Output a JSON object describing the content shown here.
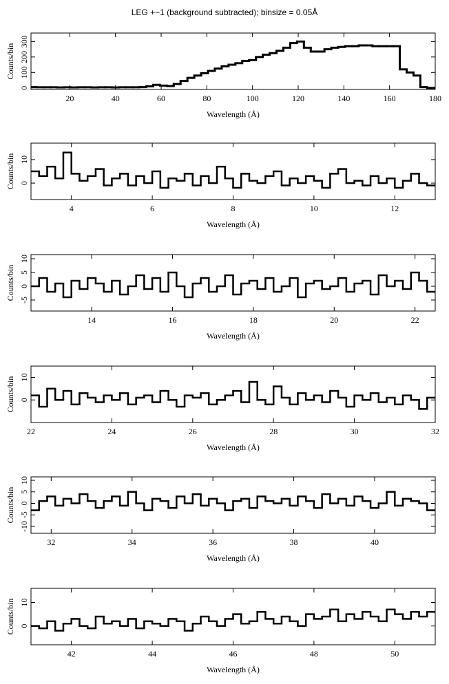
{
  "chart_data": [
    {
      "type": "step",
      "title": "LEG +−1 (background subtracted); binsize = 0.05Å",
      "xlabel": "Wavelength (Å)",
      "ylabel": "Counts/bin",
      "xlim": [
        3,
        180
      ],
      "ylim": [
        -10,
        355
      ],
      "xticks": [
        20,
        40,
        60,
        80,
        100,
        120,
        140,
        160,
        180
      ],
      "yticks": [
        0,
        100,
        200,
        300
      ],
      "color": "#000000",
      "x": [
        4,
        7,
        10,
        13,
        16,
        19,
        22,
        25,
        28,
        31,
        34,
        37,
        40,
        43,
        46,
        49,
        52,
        55,
        58,
        61,
        64,
        67,
        70,
        73,
        76,
        79,
        82,
        85,
        88,
        91,
        94,
        97,
        100,
        103,
        106,
        109,
        112,
        115,
        118,
        121,
        124,
        127,
        130,
        133,
        136,
        139,
        142,
        145,
        148,
        151,
        154,
        157,
        160,
        163,
        166,
        169,
        172,
        175,
        178
      ],
      "values": [
        5,
        4,
        4,
        4,
        3,
        4,
        3,
        4,
        4,
        3,
        4,
        4,
        3,
        4,
        4,
        4,
        5,
        10,
        20,
        15,
        12,
        25,
        45,
        65,
        80,
        95,
        110,
        125,
        140,
        150,
        160,
        175,
        180,
        200,
        215,
        225,
        240,
        260,
        290,
        300,
        260,
        235,
        235,
        250,
        260,
        265,
        270,
        270,
        275,
        275,
        270,
        270,
        270,
        270,
        120,
        100,
        80,
        5,
        0
      ]
    },
    {
      "type": "step",
      "xlabel": "Wavelength (Å)",
      "ylabel": "Counts/bin",
      "xlim": [
        3,
        13
      ],
      "ylim": [
        -7,
        17
      ],
      "xticks": [
        4,
        6,
        8,
        10,
        12
      ],
      "yticks": [
        0,
        10
      ],
      "color": "#000000",
      "x": [
        3.1,
        3.3,
        3.5,
        3.7,
        3.9,
        4.1,
        4.3,
        4.5,
        4.7,
        4.9,
        5.1,
        5.3,
        5.5,
        5.7,
        5.9,
        6.1,
        6.3,
        6.5,
        6.7,
        6.9,
        7.1,
        7.3,
        7.5,
        7.7,
        7.9,
        8.1,
        8.3,
        8.5,
        8.7,
        8.9,
        9.1,
        9.3,
        9.5,
        9.7,
        9.9,
        10.1,
        10.3,
        10.5,
        10.7,
        10.9,
        11.1,
        11.3,
        11.5,
        11.7,
        11.9,
        12.1,
        12.3,
        12.5,
        12.7,
        12.9
      ],
      "values": [
        5,
        3,
        7,
        2,
        13,
        4,
        1,
        3,
        6,
        -1,
        2,
        4,
        -1,
        3,
        0,
        5,
        -2,
        2,
        1,
        4,
        -1,
        3,
        0,
        7,
        2,
        -2,
        4,
        1,
        0,
        3,
        5,
        -1,
        2,
        0,
        3,
        1,
        -2,
        4,
        6,
        0,
        1,
        -1,
        3,
        0,
        2,
        -2,
        1,
        4,
        0,
        -1
      ]
    },
    {
      "type": "step",
      "xlabel": "Wavelength (Å)",
      "ylabel": "Counts/bin",
      "xlim": [
        12.5,
        22.5
      ],
      "ylim": [
        -9,
        11.5
      ],
      "xticks": [
        14,
        16,
        18,
        20,
        22
      ],
      "yticks": [
        -5,
        0,
        5,
        10
      ],
      "color": "#000000",
      "x": [
        12.6,
        12.8,
        13.0,
        13.2,
        13.4,
        13.6,
        13.8,
        14.0,
        14.2,
        14.4,
        14.6,
        14.8,
        15.0,
        15.2,
        15.4,
        15.6,
        15.8,
        16.0,
        16.2,
        16.4,
        16.6,
        16.8,
        17.0,
        17.2,
        17.4,
        17.6,
        17.8,
        18.0,
        18.2,
        18.4,
        18.6,
        18.8,
        19.0,
        19.2,
        19.4,
        19.6,
        19.8,
        20.0,
        20.2,
        20.4,
        20.6,
        20.8,
        21.0,
        21.2,
        21.4,
        21.6,
        21.8,
        22.0,
        22.2,
        22.4
      ],
      "values": [
        0,
        3,
        -2,
        1,
        -4,
        2,
        -1,
        3,
        1,
        -2,
        2,
        -3,
        0,
        4,
        -1,
        3,
        -2,
        5,
        0,
        -4,
        1,
        3,
        -2,
        0,
        4,
        -3,
        1,
        2,
        -1,
        3,
        -2,
        0,
        3,
        -4,
        1,
        2,
        -1,
        0,
        3,
        -2,
        1,
        2,
        -3,
        4,
        0,
        2,
        -1,
        5,
        2,
        -2
      ]
    },
    {
      "type": "step",
      "xlabel": "Wavelength (Å)",
      "ylabel": "Counts/bin",
      "xlim": [
        22,
        32
      ],
      "ylim": [
        -10,
        15
      ],
      "xticks": [
        22,
        24,
        26,
        28,
        30,
        32
      ],
      "yticks": [
        0,
        10
      ],
      "color": "#000000",
      "x": [
        22.1,
        22.3,
        22.5,
        22.7,
        22.9,
        23.1,
        23.3,
        23.5,
        23.7,
        23.9,
        24.1,
        24.3,
        24.5,
        24.7,
        24.9,
        25.1,
        25.3,
        25.5,
        25.7,
        25.9,
        26.1,
        26.3,
        26.5,
        26.7,
        26.9,
        27.1,
        27.3,
        27.5,
        27.7,
        27.9,
        28.1,
        28.3,
        28.5,
        28.7,
        28.9,
        29.1,
        29.3,
        29.5,
        29.7,
        29.9,
        30.1,
        30.3,
        30.5,
        30.7,
        30.9,
        31.1,
        31.3,
        31.5,
        31.7,
        31.9
      ],
      "values": [
        2,
        -3,
        5,
        0,
        4,
        -2,
        3,
        1,
        -1,
        2,
        0,
        3,
        -2,
        1,
        2,
        -1,
        4,
        0,
        -3,
        2,
        1,
        3,
        -2,
        0,
        2,
        4,
        -1,
        8,
        0,
        -2,
        6,
        1,
        -2,
        3,
        0,
        2,
        -1,
        4,
        1,
        -3,
        2,
        0,
        3,
        -1,
        1,
        -2,
        2,
        0,
        -4,
        1
      ]
    },
    {
      "type": "step",
      "xlabel": "Wavelength (Å)",
      "ylabel": "Counts/bin",
      "xlim": [
        31.5,
        41.5
      ],
      "ylim": [
        -13,
        11.5
      ],
      "xticks": [
        32,
        34,
        36,
        38,
        40
      ],
      "yticks": [
        -10,
        -5,
        0,
        5,
        10
      ],
      "color": "#000000",
      "x": [
        31.6,
        31.8,
        32.0,
        32.2,
        32.4,
        32.6,
        32.8,
        33.0,
        33.2,
        33.4,
        33.6,
        33.8,
        34.0,
        34.2,
        34.4,
        34.6,
        34.8,
        35.0,
        35.2,
        35.4,
        35.6,
        35.8,
        36.0,
        36.2,
        36.4,
        36.6,
        36.8,
        37.0,
        37.2,
        37.4,
        37.6,
        37.8,
        38.0,
        38.2,
        38.4,
        38.6,
        38.8,
        39.0,
        39.2,
        39.4,
        39.6,
        39.8,
        40.0,
        40.2,
        40.4,
        40.6,
        40.8,
        41.0,
        41.2,
        41.4
      ],
      "values": [
        -3,
        1,
        3,
        -1,
        2,
        0,
        4,
        1,
        -2,
        1,
        3,
        -1,
        5,
        0,
        -3,
        2,
        1,
        -2,
        3,
        0,
        4,
        -1,
        2,
        0,
        -3,
        1,
        2,
        -2,
        3,
        1,
        0,
        2,
        -1,
        3,
        1,
        -2,
        4,
        0,
        2,
        -1,
        3,
        1,
        -2,
        0,
        5,
        -1,
        2,
        1,
        0,
        -3
      ]
    },
    {
      "type": "step",
      "xlabel": "Wavelength (Å)",
      "ylabel": "Counts/bin",
      "xlim": [
        41,
        51
      ],
      "ylim": [
        -8,
        16
      ],
      "xticks": [
        42,
        44,
        46,
        48,
        50
      ],
      "yticks": [
        0,
        10
      ],
      "color": "#000000",
      "x": [
        41.1,
        41.3,
        41.5,
        41.7,
        41.9,
        42.1,
        42.3,
        42.5,
        42.7,
        42.9,
        43.1,
        43.3,
        43.5,
        43.7,
        43.9,
        44.1,
        44.3,
        44.5,
        44.7,
        44.9,
        45.1,
        45.3,
        45.5,
        45.7,
        45.9,
        46.1,
        46.3,
        46.5,
        46.7,
        46.9,
        47.1,
        47.3,
        47.5,
        47.7,
        47.9,
        48.1,
        48.3,
        48.5,
        48.7,
        48.9,
        49.1,
        49.3,
        49.5,
        49.7,
        49.9,
        50.1,
        50.3,
        50.5,
        50.7,
        50.9
      ],
      "values": [
        0,
        -1,
        2,
        -2,
        1,
        3,
        0,
        -1,
        4,
        1,
        2,
        0,
        3,
        -1,
        2,
        1,
        0,
        3,
        2,
        -2,
        1,
        4,
        2,
        0,
        3,
        5,
        1,
        2,
        6,
        3,
        1,
        4,
        2,
        0,
        5,
        3,
        4,
        7,
        2,
        5,
        3,
        6,
        4,
        2,
        7,
        5,
        3,
        6,
        4,
        6
      ]
    }
  ]
}
